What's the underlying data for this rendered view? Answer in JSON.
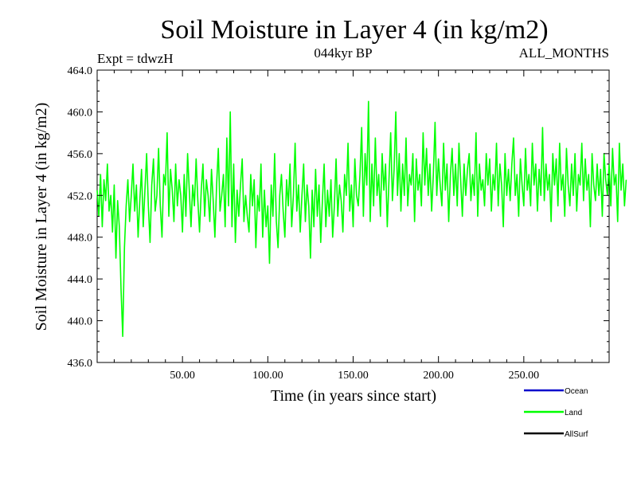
{
  "chart_data": {
    "type": "line",
    "title": "Soil Moisture in Layer 4 (in kg/m2)",
    "subtitle": "044kyr BP",
    "experiment": "Expt = tdwzH",
    "period": "ALL_MONTHS",
    "xlabel": "Time (in years since start)",
    "ylabel": "Soil Moisture in Layer 4 (in kg/m2)",
    "xlim": [
      0,
      300
    ],
    "ylim": [
      436,
      464
    ],
    "xticks": [
      50,
      100,
      150,
      200,
      250
    ],
    "xtick_labels": [
      "50.00",
      "100.00",
      "150.00",
      "200.00",
      "250.00"
    ],
    "yticks": [
      436,
      440,
      444,
      448,
      452,
      456,
      460,
      464
    ],
    "ytick_labels": [
      "436.0",
      "440.0",
      "444.0",
      "448.0",
      "452.0",
      "456.0",
      "460.0",
      "464.0"
    ],
    "legend_position": "bottom-right",
    "legend": [
      {
        "name": "Ocean",
        "color": "#0000cc"
      },
      {
        "name": "Land",
        "color": "#00ff00"
      },
      {
        "name": "AllSurf",
        "color": "#000000"
      }
    ],
    "series": [
      {
        "name": "Land",
        "color": "#00ff00",
        "x_start": 0,
        "x_step": 1,
        "values": [
          452.5,
          450,
          454,
          449,
          453.5,
          451.5,
          455,
          450.5,
          452,
          448.5,
          453,
          446,
          451.5,
          449,
          443,
          438.5,
          447,
          451,
          453.5,
          449.5,
          452,
          455,
          450.5,
          453,
          448,
          451.5,
          454.5,
          449,
          452.5,
          456,
          451,
          447.5,
          453,
          455.5,
          450.5,
          452,
          456.5,
          451,
          448,
          454,
          453,
          458,
          450,
          454.5,
          452.5,
          449.5,
          455,
          451,
          453.5,
          452,
          448.5,
          454,
          450,
          456,
          452.5,
          449,
          453,
          451,
          455.5,
          451.5,
          448.5,
          452.5,
          455,
          450,
          453.5,
          452,
          449.5,
          454.5,
          451.5,
          448,
          453,
          456.5,
          450.5,
          452,
          454,
          449,
          457.5,
          451,
          460,
          449,
          455,
          447.5,
          452.5,
          450,
          453,
          455.5,
          449.5,
          452,
          450,
          448.5,
          454,
          451,
          453.5,
          447,
          452,
          450.5,
          455,
          448,
          452.5,
          449,
          451,
          445.5,
          453,
          450,
          456,
          449.5,
          447,
          452,
          454,
          450.5,
          448,
          453.5,
          451,
          455,
          449,
          452,
          457,
          450.5,
          453,
          448.5,
          452,
          455,
          449.5,
          453,
          451,
          446,
          452.5,
          449,
          454.5,
          450,
          453,
          447.5,
          451.5,
          455,
          449,
          452.5,
          450,
          453.5,
          448,
          451,
          455.5,
          450,
          453,
          451.5,
          448.5,
          454,
          452,
          457,
          450.5,
          453,
          449,
          455.5,
          452,
          451,
          454,
          458.5,
          450,
          456,
          453,
          461,
          449.5,
          455,
          451,
          457.5,
          452,
          454,
          450,
          456,
          452.5,
          455,
          449,
          453.5,
          458,
          451.5,
          454.5,
          460,
          452,
          456,
          450.5,
          455,
          452,
          457.5,
          451,
          454,
          453,
          456,
          449.5,
          455.5,
          452.5,
          454,
          451,
          458,
          453,
          456.5,
          452,
          455,
          450.5,
          454,
          459,
          452,
          455.5,
          453,
          451,
          457,
          452.5,
          455,
          449.5,
          454,
          456.5,
          452,
          455,
          451,
          457,
          453.5,
          450,
          455,
          452,
          454.5,
          456,
          451.5,
          454,
          452,
          458,
          450,
          455,
          452.5,
          453.5,
          451,
          456,
          453,
          455.5,
          450.5,
          454,
          452.5,
          457,
          451,
          455,
          453,
          449,
          456,
          452,
          454.5,
          451.5,
          455,
          457.5,
          452,
          454,
          450,
          455.5,
          453,
          451,
          456.5,
          452.5,
          454,
          451,
          457,
          453,
          455,
          450.5,
          454.5,
          452,
          458.5,
          451.5,
          455,
          452.5,
          454,
          449.5,
          456,
          453,
          455.5,
          451,
          457,
          452.5,
          454,
          450,
          456.5,
          453,
          451,
          455,
          452,
          456,
          450.5,
          454,
          453,
          457,
          451.5,
          455.5,
          452.5,
          454,
          449,
          456,
          453,
          451.5,
          455,
          452,
          454.5,
          450,
          456,
          453.5,
          452,
          455,
          451,
          456.5,
          453,
          454,
          449.5,
          457,
          452.5,
          455,
          451,
          453.5
        ]
      }
    ]
  }
}
